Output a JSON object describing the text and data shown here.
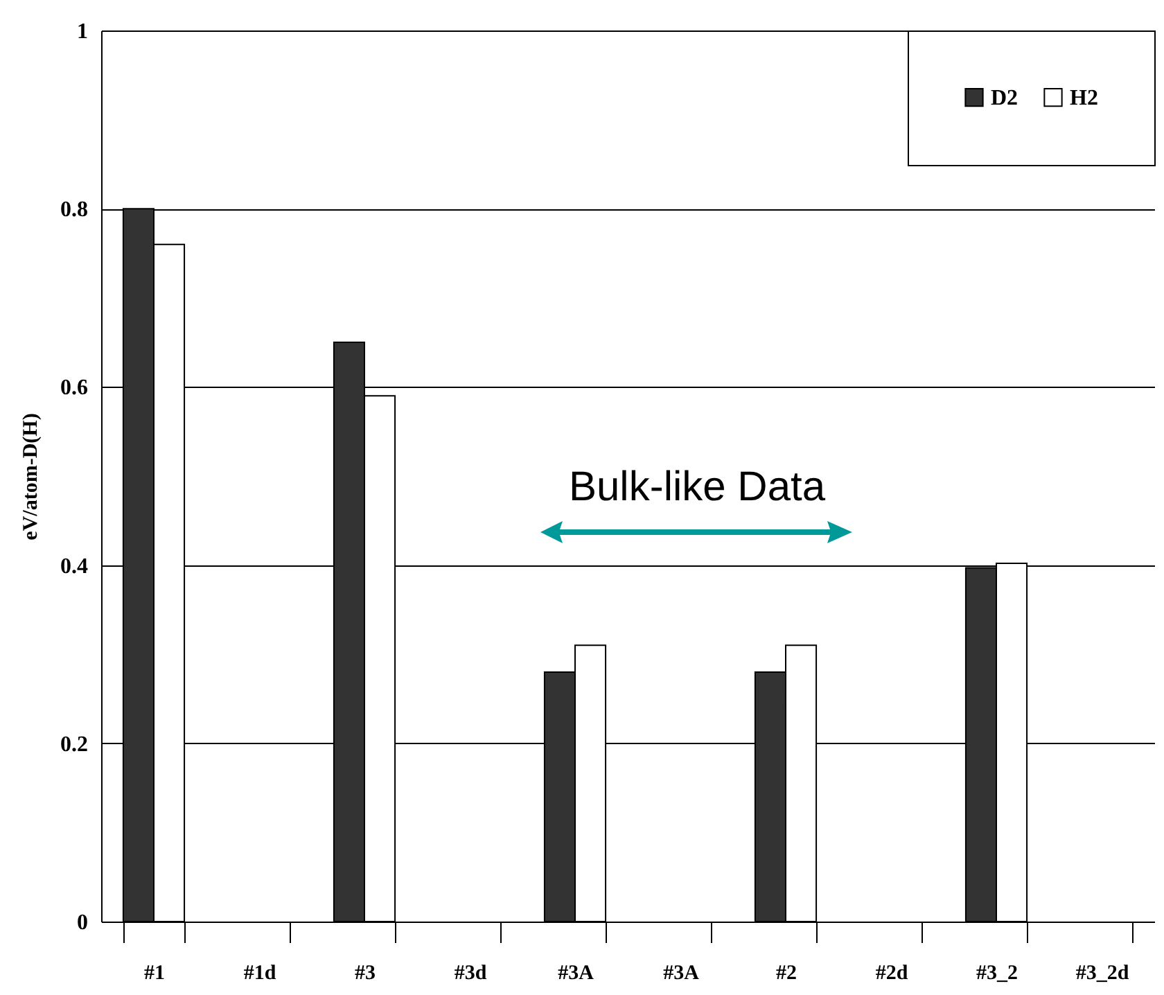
{
  "chart_data": {
    "type": "bar",
    "ylabel": "eV/atom-D(H)",
    "categories": [
      "#1",
      "#1d",
      "#3",
      "#3d",
      "#3A",
      "#3A",
      "#2",
      "#2d",
      "#3_2",
      "#3_2d"
    ],
    "series": [
      {
        "name": "D2",
        "color": "#333333",
        "values": [
          0.8,
          null,
          0.65,
          null,
          0.28,
          null,
          0.28,
          null,
          0.397,
          null
        ]
      },
      {
        "name": "H2",
        "color": "#ffffff",
        "values": [
          0.76,
          null,
          0.59,
          null,
          0.31,
          null,
          0.31,
          null,
          0.402,
          null
        ]
      }
    ],
    "ylim": [
      0,
      1
    ],
    "yticks": [
      0,
      0.2,
      0.4,
      0.6,
      0.8,
      1
    ],
    "grid": "y",
    "legend": "top right",
    "annotations": [
      "Bulk-like Data"
    ]
  }
}
